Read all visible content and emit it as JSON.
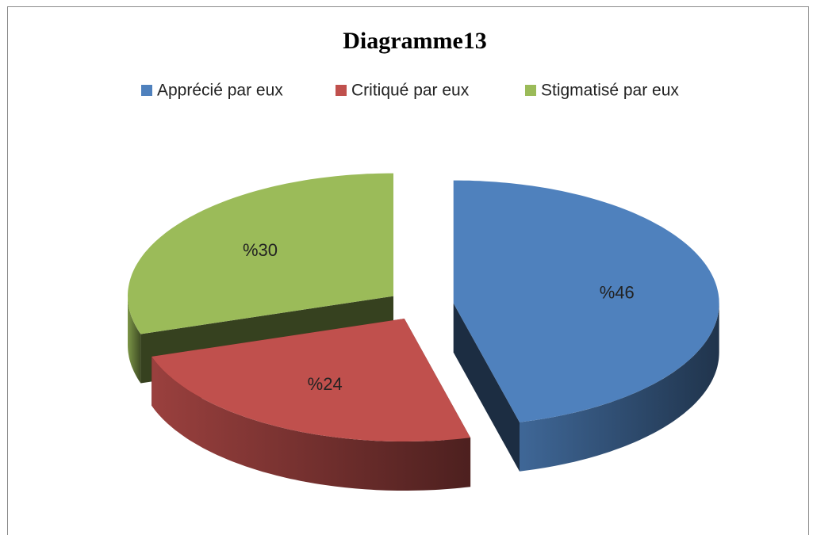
{
  "chart_data": {
    "type": "pie",
    "title": "Diagramme13",
    "categories": [
      "Apprécié par eux",
      "Critiqué par eux",
      "Stigmatisé par eux"
    ],
    "values": [
      46,
      24,
      30
    ],
    "value_labels": [
      "%46",
      "%24",
      "%30"
    ],
    "colors": [
      "#4f81bd",
      "#c0504d",
      "#9bbb59"
    ],
    "legend": "top",
    "exploded": true,
    "three_d": true
  }
}
